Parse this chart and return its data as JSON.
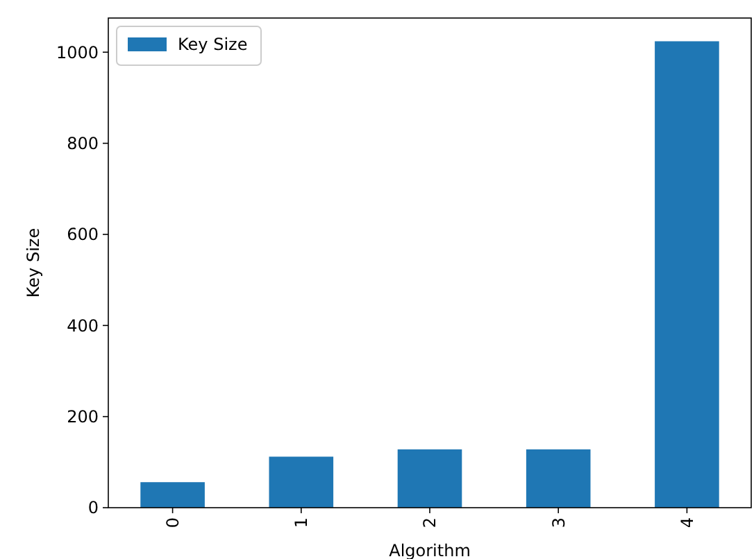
{
  "chart_data": {
    "type": "bar",
    "xlabel": "Algorithm",
    "ylabel": "Key Size",
    "categories": [
      "0",
      "1",
      "2",
      "3",
      "4"
    ],
    "series": [
      {
        "name": "Key Size",
        "color": "#1f77b4",
        "values": [
          56,
          112,
          128,
          128,
          1024
        ]
      }
    ],
    "ylim": [
      0,
      1075
    ],
    "yticks": [
      0,
      200,
      400,
      600,
      800,
      1000
    ],
    "legend": "top left",
    "grid": false
  }
}
